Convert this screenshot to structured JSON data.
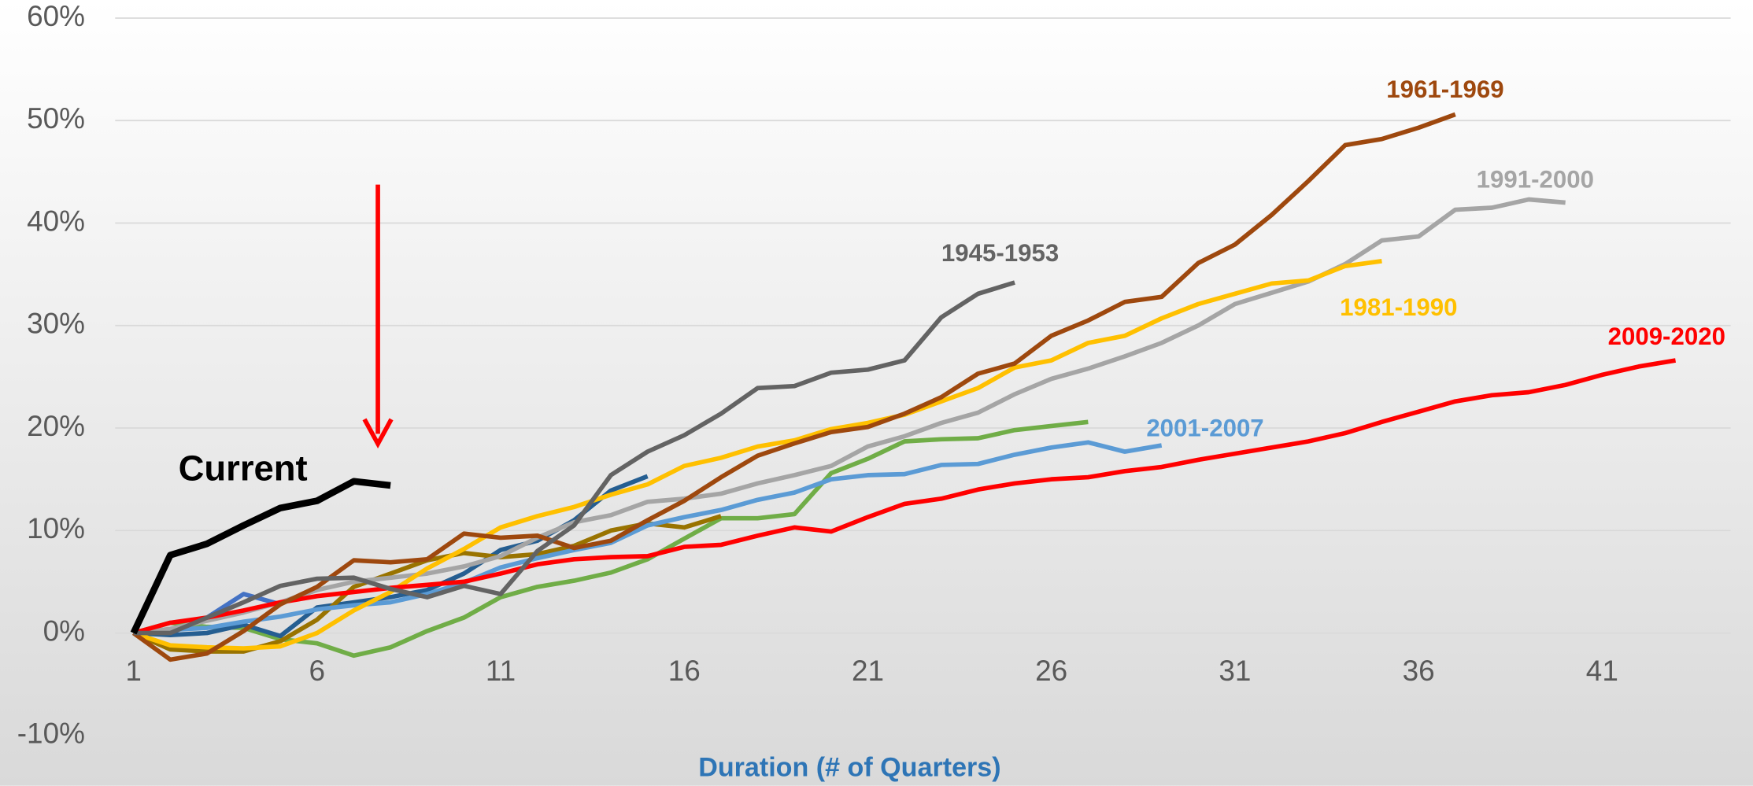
{
  "chart_data": {
    "type": "line",
    "x_label": "Duration (# of Quarters)",
    "x": [
      1,
      2,
      3,
      4,
      5,
      6,
      7,
      8,
      9,
      10,
      11,
      12,
      13,
      14,
      15,
      16,
      17,
      18,
      19,
      20,
      21,
      22,
      23,
      24,
      25,
      26,
      27,
      28,
      29,
      30,
      31,
      32,
      33,
      34,
      35,
      36,
      37,
      38,
      39,
      40,
      41,
      42,
      43
    ],
    "xlim": [
      0.5,
      44.5
    ],
    "xticks": [
      1,
      6,
      11,
      16,
      21,
      26,
      31,
      36,
      41
    ],
    "ylim": [
      -10,
      60
    ],
    "yticks": [
      {
        "value": -10,
        "label": "-10%"
      },
      {
        "value": 0,
        "label": "0%"
      },
      {
        "value": 10,
        "label": "10%"
      },
      {
        "value": 20,
        "label": "20%"
      },
      {
        "value": 30,
        "label": "30%"
      },
      {
        "value": 40,
        "label": "40%"
      },
      {
        "value": 50,
        "label": "50%"
      },
      {
        "value": 60,
        "label": "60%"
      }
    ],
    "grid": true,
    "series": [
      {
        "color": "#70ad47",
        "values": [
          0,
          1.0,
          0.6,
          0.5,
          -0.6,
          -1.0,
          -2.2,
          -1.4,
          0.2,
          1.5,
          3.5,
          4.5,
          5.1,
          5.9,
          7.2,
          9.2,
          11.2,
          11.2,
          11.6,
          15.6,
          17.0,
          18.7,
          18.9,
          19.0,
          19.8,
          20.2,
          20.6,
          null,
          null,
          null,
          null,
          null,
          null,
          null,
          null,
          null,
          null,
          null,
          null,
          null,
          null,
          null,
          null
        ]
      },
      {
        "color": "#4472c4",
        "values": [
          0,
          0,
          1.5,
          3.8,
          2.8,
          null,
          null,
          null,
          null,
          null,
          null,
          null,
          null,
          null,
          null,
          null,
          null,
          null,
          null,
          null,
          null,
          null,
          null,
          null,
          null,
          null,
          null,
          null,
          null,
          null,
          null,
          null,
          null,
          null,
          null,
          null,
          null,
          null,
          null,
          null,
          null,
          null,
          null
        ]
      },
      {
        "color": "#255e91",
        "values": [
          0,
          -0.2,
          0,
          0.8,
          -0.3,
          2.5,
          3.0,
          3.5,
          4.2,
          5.8,
          8.1,
          9.0,
          11.0,
          13.9,
          15.3,
          null,
          null,
          null,
          null,
          null,
          null,
          null,
          null,
          null,
          null,
          null,
          null,
          null,
          null,
          null,
          null,
          null,
          null,
          null,
          null,
          null,
          null,
          null,
          null,
          null,
          null,
          null,
          null
        ]
      },
      {
        "color": "#997300",
        "values": [
          0,
          -1.6,
          -1.8,
          -1.8,
          -0.8,
          1.3,
          4.5,
          5.8,
          7.1,
          7.8,
          7.4,
          7.7,
          8.5,
          10.0,
          10.7,
          10.3,
          11.4,
          null,
          null,
          null,
          null,
          null,
          null,
          null,
          null,
          null,
          null,
          null,
          null,
          null,
          null,
          null,
          null,
          null,
          null,
          null,
          null,
          null,
          null,
          null,
          null,
          null,
          null
        ]
      },
      {
        "name": "2001-2007",
        "color": "#5b9bd5",
        "values": [
          0,
          0.3,
          0.5,
          1.1,
          1.6,
          2.3,
          2.7,
          3.0,
          3.8,
          4.9,
          6.4,
          7.3,
          8.1,
          8.8,
          10.5,
          11.3,
          12.0,
          13.0,
          13.7,
          15.0,
          15.4,
          15.5,
          16.4,
          16.5,
          17.4,
          18.1,
          18.6,
          17.7,
          18.3,
          null,
          null,
          null,
          null,
          null,
          null,
          null,
          null,
          null,
          null,
          null,
          null,
          null,
          null
        ]
      },
      {
        "name": "1991-2000",
        "color": "#a5a5a5",
        "values": [
          0,
          0.4,
          1.2,
          2.0,
          3.0,
          4.2,
          5.0,
          5.4,
          5.8,
          6.5,
          7.5,
          9.3,
          10.8,
          11.5,
          12.8,
          13.1,
          13.6,
          14.6,
          15.4,
          16.3,
          18.2,
          19.2,
          20.5,
          21.5,
          23.3,
          24.8,
          25.8,
          27.0,
          28.3,
          30.0,
          32.1,
          33.2,
          34.3,
          36.0,
          38.3,
          38.7,
          41.3,
          41.5,
          42.3,
          42.0,
          null,
          null,
          null
        ]
      },
      {
        "name": "1981-1990",
        "color": "#ffc000",
        "values": [
          0,
          -1.2,
          -1.4,
          -1.5,
          -1.3,
          0,
          2.2,
          4.0,
          6.3,
          8.2,
          10.3,
          11.4,
          12.3,
          13.5,
          14.5,
          16.3,
          17.1,
          18.2,
          18.8,
          19.9,
          20.5,
          21.3,
          22.6,
          23.9,
          25.9,
          26.6,
          28.3,
          29.0,
          30.7,
          32.1,
          33.1,
          34.1,
          34.4,
          35.8,
          36.3,
          null,
          null,
          null,
          null,
          null,
          null,
          null,
          null
        ]
      },
      {
        "name": "2009-2020",
        "color": "#ff0000",
        "values": [
          0,
          1.0,
          1.5,
          2.2,
          3.0,
          3.6,
          4.0,
          4.4,
          4.7,
          5.0,
          5.8,
          6.7,
          7.2,
          7.4,
          7.5,
          8.4,
          8.6,
          9.5,
          10.3,
          9.9,
          11.3,
          12.6,
          13.1,
          14.0,
          14.6,
          15.0,
          15.2,
          15.8,
          16.2,
          16.9,
          17.5,
          18.1,
          18.7,
          19.5,
          20.6,
          21.6,
          22.6,
          23.2,
          23.5,
          24.2,
          25.2,
          26.0,
          26.6
        ]
      },
      {
        "name": "1961-1969",
        "color": "#9e480e",
        "values": [
          0,
          -2.6,
          -2.0,
          0.2,
          2.8,
          4.5,
          7.1,
          6.9,
          7.2,
          9.7,
          9.3,
          9.5,
          8.3,
          9.0,
          11.0,
          12.9,
          15.2,
          17.3,
          18.5,
          19.6,
          20.1,
          21.4,
          23.0,
          25.3,
          26.3,
          29.0,
          30.5,
          32.3,
          32.8,
          36.1,
          37.9,
          40.8,
          44.1,
          47.6,
          48.2,
          49.3,
          50.6,
          null,
          null,
          null,
          null,
          null,
          null
        ]
      },
      {
        "name": "1945-1953",
        "color": "#636363",
        "values": [
          0,
          0,
          1.5,
          3.0,
          4.6,
          5.3,
          5.4,
          4.3,
          3.5,
          4.6,
          3.8,
          8.0,
          10.5,
          15.4,
          17.7,
          19.3,
          21.4,
          23.9,
          24.1,
          25.4,
          25.7,
          26.6,
          30.8,
          33.1,
          34.2,
          null,
          null,
          null,
          null,
          null,
          null,
          null,
          null,
          null,
          null,
          null,
          null,
          null,
          null,
          null,
          null,
          null,
          null
        ]
      },
      {
        "name": "Current",
        "color": "#000000",
        "values": [
          0,
          7.6,
          8.7,
          10.5,
          12.2,
          12.9,
          14.8,
          14.4,
          null,
          null,
          null,
          null,
          null,
          null,
          null,
          null,
          null,
          null,
          null,
          null,
          null,
          null,
          null,
          null,
          null,
          null,
          null,
          null,
          null,
          null,
          null,
          null,
          null,
          null,
          null,
          null,
          null,
          null,
          null,
          null,
          null,
          null,
          null
        ]
      }
    ]
  }
}
